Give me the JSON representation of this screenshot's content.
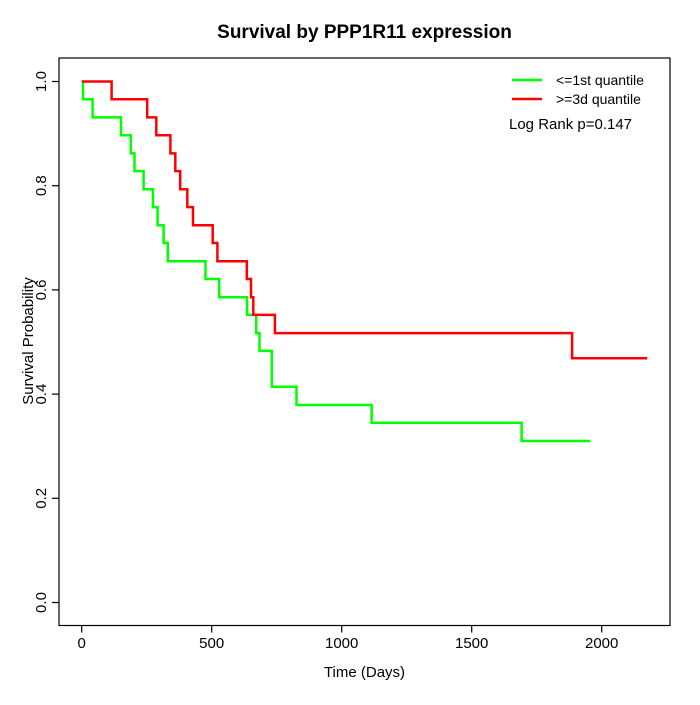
{
  "colors": {
    "green_series": "#00FF00",
    "red_series": "#FF0000",
    "axis": "#000000",
    "background": "#FFFFFF"
  },
  "chart_data": {
    "type": "line",
    "subtype": "kaplan-meier-step",
    "title": "Survival by PPP1R11 expression",
    "xlabel": "Time (Days)",
    "ylabel": "Survival Probability",
    "xlim": [
      0,
      2260
    ],
    "ylim": [
      0,
      1.04
    ],
    "grid": false,
    "x_ticks": [
      {
        "value": 0,
        "label": "0"
      },
      {
        "value": 500,
        "label": "500"
      },
      {
        "value": 1000,
        "label": "1000"
      },
      {
        "value": 1500,
        "label": "1500"
      },
      {
        "value": 2000,
        "label": "2000"
      }
    ],
    "y_ticks": [
      {
        "value": 0.0,
        "label": "0.0"
      },
      {
        "value": 0.2,
        "label": "0.2"
      },
      {
        "value": 0.4,
        "label": "0.4"
      },
      {
        "value": 0.6,
        "label": "0.6"
      },
      {
        "value": 0.8,
        "label": "0.8"
      },
      {
        "value": 1.0,
        "label": "1.0"
      }
    ],
    "legend": {
      "position": "top-right",
      "entries": [
        {
          "label": "<=1st quantile",
          "color": "#00FF00"
        },
        {
          "label": ">=3d quantile",
          "color": "#FF0000"
        }
      ]
    },
    "annotation": "Log Rank p=0.147",
    "series": [
      {
        "name": "<=1st quantile",
        "color": "#00FF00",
        "step": "post",
        "points": [
          [
            0,
            1.0
          ],
          [
            5,
            0.966
          ],
          [
            42,
            0.931
          ],
          [
            151,
            0.897
          ],
          [
            189,
            0.862
          ],
          [
            203,
            0.828
          ],
          [
            238,
            0.793
          ],
          [
            274,
            0.759
          ],
          [
            292,
            0.724
          ],
          [
            315,
            0.69
          ],
          [
            331,
            0.655
          ],
          [
            476,
            0.621
          ],
          [
            529,
            0.586
          ],
          [
            636,
            0.552
          ],
          [
            671,
            0.517
          ],
          [
            684,
            0.483
          ],
          [
            731,
            0.414
          ],
          [
            826,
            0.379
          ],
          [
            1115,
            0.345
          ],
          [
            1692,
            0.31
          ],
          [
            1956,
            0.31
          ]
        ]
      },
      {
        "name": ">=3d quantile",
        "color": "#FF0000",
        "step": "post",
        "points": [
          [
            0,
            1.0
          ],
          [
            115,
            0.966
          ],
          [
            252,
            0.931
          ],
          [
            287,
            0.897
          ],
          [
            341,
            0.862
          ],
          [
            360,
            0.828
          ],
          [
            379,
            0.793
          ],
          [
            406,
            0.759
          ],
          [
            428,
            0.724
          ],
          [
            504,
            0.69
          ],
          [
            522,
            0.655
          ],
          [
            635,
            0.621
          ],
          [
            651,
            0.586
          ],
          [
            660,
            0.552
          ],
          [
            743,
            0.517
          ],
          [
            1886,
            0.469
          ],
          [
            2175,
            0.469
          ]
        ]
      }
    ]
  }
}
